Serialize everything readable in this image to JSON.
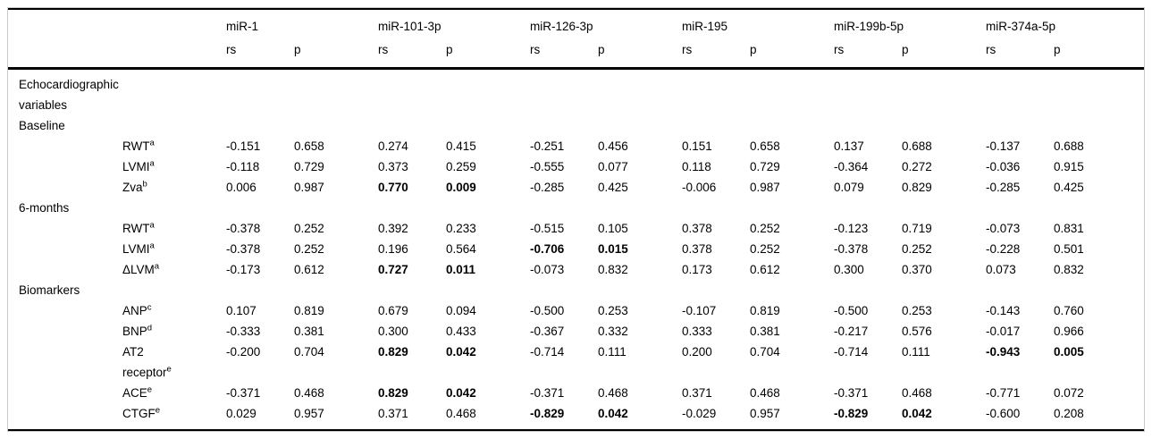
{
  "table": {
    "groups": [
      "miR-1",
      "miR-101-3p",
      "miR-126-3p",
      "miR-195",
      "miR-199b-5p",
      "miR-374a-5p"
    ],
    "subheaders": {
      "rs": "rs",
      "p": "p"
    },
    "rows": [
      {
        "type": "section",
        "label": "Echocardiographic variables"
      },
      {
        "type": "section",
        "label": "Baseline"
      },
      {
        "type": "data",
        "label": "RWT",
        "sup": "a",
        "values": [
          "-0.151",
          "0.658",
          "0.274",
          "0.415",
          "-0.251",
          "0.456",
          "0.151",
          "0.658",
          "0.137",
          "0.688",
          "-0.137",
          "0.688"
        ],
        "bold": []
      },
      {
        "type": "data",
        "label": "LVMI",
        "sup": "a",
        "values": [
          "-0.118",
          "0.729",
          "0.373",
          "0.259",
          "-0.555",
          "0.077",
          "0.118",
          "0.729",
          "-0.364",
          "0.272",
          "-0.036",
          "0.915"
        ],
        "bold": []
      },
      {
        "type": "data",
        "label": "Zva",
        "sup": "b",
        "values": [
          "0.006",
          "0.987",
          "0.770",
          "0.009",
          "-0.285",
          "0.425",
          "-0.006",
          "0.987",
          "0.079",
          "0.829",
          "-0.285",
          "0.425"
        ],
        "bold": [
          2,
          3
        ]
      },
      {
        "type": "section",
        "label": "6-months"
      },
      {
        "type": "data",
        "label": "RWT",
        "sup": "a",
        "values": [
          "-0.378",
          "0.252",
          "0.392",
          "0.233",
          "-0.515",
          "0.105",
          "0.378",
          "0.252",
          "-0.123",
          "0.719",
          "-0.073",
          "0.831"
        ],
        "bold": []
      },
      {
        "type": "data",
        "label": "LVMI",
        "sup": "a",
        "values": [
          "-0.378",
          "0.252",
          "0.196",
          "0.564",
          "-0.706",
          "0.015",
          "0.378",
          "0.252",
          "-0.378",
          "0.252",
          "-0.228",
          "0.501"
        ],
        "bold": [
          4,
          5
        ]
      },
      {
        "type": "data",
        "label": "ΔLVM",
        "sup": "a",
        "values": [
          "-0.173",
          "0.612",
          "0.727",
          "0.011",
          "-0.073",
          "0.832",
          "0.173",
          "0.612",
          "0.300",
          "0.370",
          "0.073",
          "0.832"
        ],
        "bold": [
          2,
          3
        ]
      },
      {
        "type": "section",
        "label": "Biomarkers"
      },
      {
        "type": "data",
        "label": "ANP",
        "sup": "c",
        "values": [
          "0.107",
          "0.819",
          "0.679",
          "0.094",
          "-0.500",
          "0.253",
          "-0.107",
          "0.819",
          "-0.500",
          "0.253",
          "-0.143",
          "0.760"
        ],
        "bold": []
      },
      {
        "type": "data",
        "label": "BNP",
        "sup": "d",
        "values": [
          "-0.333",
          "0.381",
          "0.300",
          "0.433",
          "-0.367",
          "0.332",
          "0.333",
          "0.381",
          "-0.217",
          "0.576",
          "-0.017",
          "0.966"
        ],
        "bold": []
      },
      {
        "type": "data",
        "label": "AT2",
        "label2": "receptor",
        "sup": "e",
        "values": [
          "-0.200",
          "0.704",
          "0.829",
          "0.042",
          "-0.714",
          "0.111",
          "0.200",
          "0.704",
          "-0.714",
          "0.111",
          "-0.943",
          "0.005"
        ],
        "bold": [
          2,
          3,
          10,
          11
        ]
      },
      {
        "type": "data",
        "label": "ACE",
        "sup": "e",
        "values": [
          "-0.371",
          "0.468",
          "0.829",
          "0.042",
          "-0.371",
          "0.468",
          "0.371",
          "0.468",
          "-0.371",
          "0.468",
          "-0.771",
          "0.072"
        ],
        "bold": [
          2,
          3
        ]
      },
      {
        "type": "data",
        "label": "CTGF",
        "sup": "e",
        "values": [
          "0.029",
          "0.957",
          "0.371",
          "0.468",
          "-0.829",
          "0.042",
          "-0.029",
          "0.957",
          "-0.829",
          "0.042",
          "-0.600",
          "0.208"
        ],
        "bold": [
          4,
          5,
          8,
          9
        ]
      }
    ]
  }
}
